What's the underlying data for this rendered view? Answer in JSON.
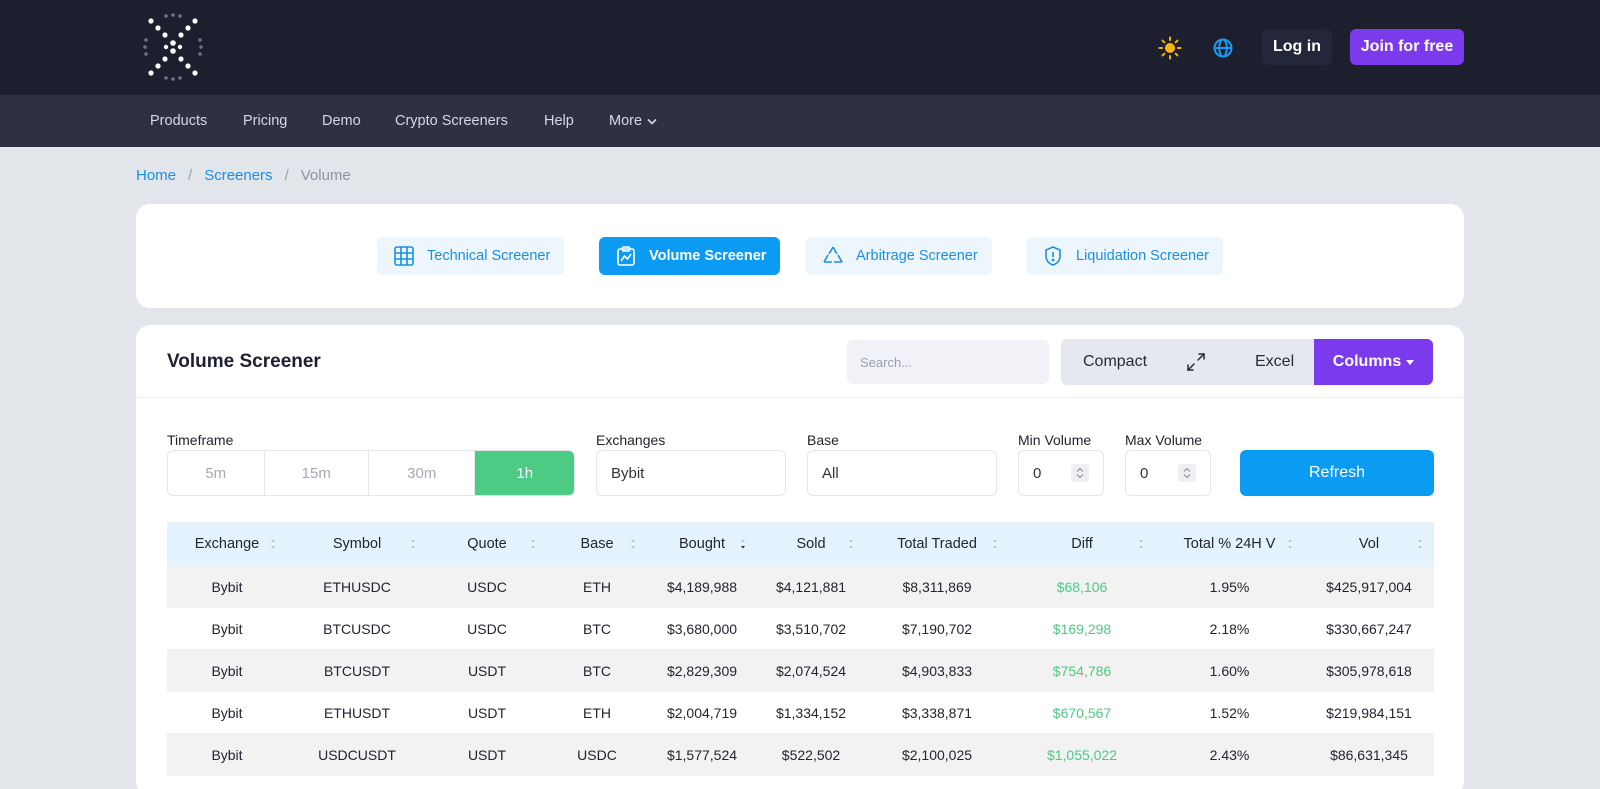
{
  "header": {
    "login_label": "Log in",
    "join_label": "Join for free",
    "accent": "#7c3aed"
  },
  "nav": {
    "items": [
      "Products",
      "Pricing",
      "Demo",
      "Crypto Screeners",
      "Help",
      "More"
    ]
  },
  "breadcrumb": {
    "home": "Home",
    "screeners": "Screeners",
    "current": "Volume"
  },
  "screener_tabs": {
    "technical": "Technical Screener",
    "volume": "Volume Screener",
    "arbitrage": "Arbitrage Screener",
    "liquidation": "Liquidation Screener"
  },
  "main": {
    "title": "Volume Screener",
    "search_placeholder": "Search...",
    "compact_label": "Compact",
    "excel_label": "Excel",
    "columns_label": "Columns"
  },
  "filters": {
    "timeframe_label": "Timeframe",
    "timeframes": [
      "5m",
      "15m",
      "30m",
      "1h"
    ],
    "selected_timeframe": "1h",
    "exchanges_label": "Exchanges",
    "exchanges_value": "Bybit",
    "base_label": "Base",
    "base_value": "All",
    "min_volume_label": "Min Volume",
    "min_volume_value": "0",
    "max_volume_label": "Max Volume",
    "max_volume_value": "0",
    "refresh_label": "Refresh"
  },
  "table": {
    "headers": [
      "Exchange",
      "Symbol",
      "Quote",
      "Base",
      "Bought",
      "Sold",
      "Total Traded",
      "Diff",
      "Total % 24H V",
      "Vol"
    ],
    "rows": [
      [
        "Bybit",
        "ETHUSDC",
        "USDC",
        "ETH",
        "$4,189,988",
        "$4,121,881",
        "$8,311,869",
        "$68,106",
        "1.95%",
        "$425,917,004"
      ],
      [
        "Bybit",
        "BTCUSDC",
        "USDC",
        "BTC",
        "$3,680,000",
        "$3,510,702",
        "$7,190,702",
        "$169,298",
        "2.18%",
        "$330,667,247"
      ],
      [
        "Bybit",
        "BTCUSDT",
        "USDT",
        "BTC",
        "$2,829,309",
        "$2,074,524",
        "$4,903,833",
        "$754,786",
        "1.60%",
        "$305,978,618"
      ],
      [
        "Bybit",
        "ETHUSDT",
        "USDT",
        "ETH",
        "$2,004,719",
        "$1,334,152",
        "$3,338,871",
        "$670,567",
        "1.52%",
        "$219,984,151"
      ],
      [
        "Bybit",
        "USDCUSDT",
        "USDT",
        "USDC",
        "$1,577,524",
        "$522,502",
        "$2,100,025",
        "$1,055,022",
        "2.43%",
        "$86,631,345"
      ]
    ]
  }
}
